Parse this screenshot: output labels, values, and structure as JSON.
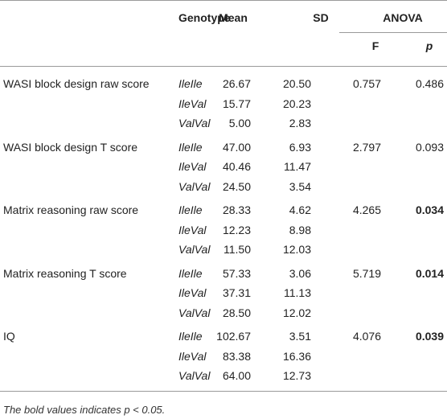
{
  "table": {
    "header": {
      "genotype": "Genotype",
      "mean": "Mean",
      "sd": "SD",
      "anova": "ANOVA",
      "f": "F",
      "p": "p"
    },
    "groups": [
      {
        "label": "WASI block design raw score",
        "f": "0.757",
        "p": "0.486",
        "p_bold": false,
        "rows": [
          [
            "IleIle",
            "26.67",
            "20.50"
          ],
          [
            "IleVal",
            "15.77",
            "20.23"
          ],
          [
            "ValVal",
            "5.00",
            "2.83"
          ]
        ]
      },
      {
        "label": "WASI block design T score",
        "f": "2.797",
        "p": "0.093",
        "p_bold": false,
        "rows": [
          [
            "IleIle",
            "47.00",
            "6.93"
          ],
          [
            "IleVal",
            "40.46",
            "11.47"
          ],
          [
            "ValVal",
            "24.50",
            "3.54"
          ]
        ]
      },
      {
        "label": "Matrix reasoning raw score",
        "f": "4.265",
        "p": "0.034",
        "p_bold": true,
        "rows": [
          [
            "IleIle",
            "28.33",
            "4.62"
          ],
          [
            "IleVal",
            "12.23",
            "8.98"
          ],
          [
            "ValVal",
            "11.50",
            "12.03"
          ]
        ]
      },
      {
        "label": "Matrix reasoning T score",
        "f": "5.719",
        "p": "0.014",
        "p_bold": true,
        "rows": [
          [
            "IleIle",
            "57.33",
            "3.06"
          ],
          [
            "IleVal",
            "37.31",
            "11.13"
          ],
          [
            "ValVal",
            "28.50",
            "12.02"
          ]
        ]
      },
      {
        "label": "IQ",
        "f": "4.076",
        "p": "0.039",
        "p_bold": true,
        "rows": [
          [
            "IleIle",
            "102.67",
            "3.51"
          ],
          [
            "IleVal",
            "83.38",
            "16.36"
          ],
          [
            "ValVal",
            "64.00",
            "12.73"
          ]
        ]
      }
    ],
    "footnote": "The bold values indicates p < 0.05."
  }
}
